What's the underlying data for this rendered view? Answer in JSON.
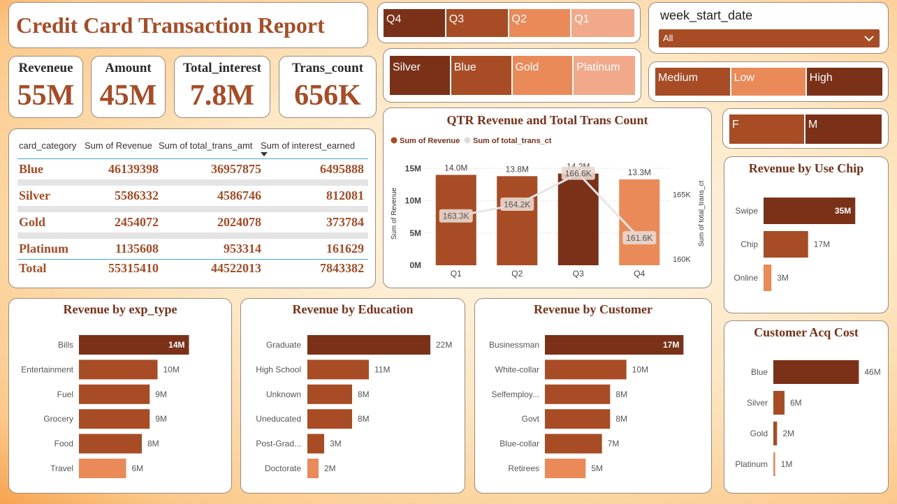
{
  "report_title": "Credit Card Transaction Report",
  "kpis": [
    {
      "label": "Reveneue",
      "value": "55M"
    },
    {
      "label": "Amount",
      "value": "45M"
    },
    {
      "label": "Total_interest",
      "value": "7.8M"
    },
    {
      "label": "Trans_count",
      "value": "656K"
    }
  ],
  "slicers": {
    "quarter": [
      "Q4",
      "Q3",
      "Q2",
      "Q1"
    ],
    "card_category": [
      "Silver",
      "Blue",
      "Gold",
      "Platinum"
    ],
    "income": [
      "Medium",
      "Low",
      "High"
    ],
    "gender": [
      "F",
      "M"
    ],
    "week_start_date": {
      "label": "week_start_date",
      "value": "All"
    }
  },
  "table": {
    "headers": [
      "card_category",
      "Sum of Revenue",
      "Sum of total_trans_amt",
      "Sum of interest_earned"
    ],
    "rows": [
      [
        "Blue",
        "46139398",
        "36957875",
        "6495888"
      ],
      [
        "Silver",
        "5586332",
        "4586746",
        "812081"
      ],
      [
        "Gold",
        "2454072",
        "2024078",
        "373784"
      ],
      [
        "Platinum",
        "1135608",
        "953314",
        "161629"
      ]
    ],
    "total": [
      "Total",
      "55315410",
      "44522013",
      "7843382"
    ]
  },
  "colors": {
    "dark": "#7a3118",
    "mid": "#a84c26",
    "light": "#ea8a59",
    "pale": "#f2a98a",
    "line": "#e6e6e6"
  },
  "icons": {
    "dropdown": "chevron-down-icon",
    "sort": "sort-desc-icon"
  },
  "chart_data": [
    {
      "type": "bar",
      "title": "QTR Revenue and Total Trans Count",
      "legend": [
        "Sum of Revenue",
        "Sum of total_trans_ct"
      ],
      "legend_position": "top-left",
      "categories": [
        "Q1",
        "Q2",
        "Q3",
        "Q4"
      ],
      "series": [
        {
          "name": "Sum of Revenue",
          "values": [
            14.0,
            13.8,
            14.2,
            13.3
          ],
          "labels": [
            "14.0M",
            "13.8M",
            "14.2M",
            "13.3M"
          ]
        },
        {
          "name": "Sum of total_trans_ct",
          "values": [
            163.3,
            164.2,
            166.6,
            161.6
          ],
          "labels": [
            "163.3K",
            "164.2K",
            "166.6K",
            "161.6K"
          ]
        }
      ],
      "ylabel": "Sum of Revenue",
      "y2label": "Sum of total_trans_ct",
      "y_ticks": [
        "0M",
        "5M",
        "10M",
        "15M"
      ],
      "y_ticks_values": [
        0,
        5,
        10,
        15
      ],
      "ylim": [
        0,
        16
      ],
      "y2_ticks": [
        "160K",
        "165K"
      ],
      "y2_ticks_values": [
        160,
        165
      ],
      "y2lim": [
        159.5,
        167.5
      ]
    },
    {
      "type": "bar",
      "title": "Revenue by Use Chip",
      "categories": [
        "Swipe",
        "Chip",
        "Online"
      ],
      "values": [
        35,
        17,
        3
      ],
      "labels": [
        "35M",
        "17M",
        "3M"
      ],
      "xlim": [
        0,
        40
      ]
    },
    {
      "type": "bar",
      "title": "Revenue by exp_type",
      "categories": [
        "Bills",
        "Entertainment",
        "Fuel",
        "Grocery",
        "Food",
        "Travel"
      ],
      "values": [
        14,
        10,
        9,
        9,
        8,
        6
      ],
      "labels": [
        "14M",
        "10M",
        "9M",
        "9M",
        "8M",
        "6M"
      ],
      "xlim": [
        0,
        16
      ]
    },
    {
      "type": "bar",
      "title": "Revenue by Education",
      "categories": [
        "Graduate",
        "High School",
        "Unknown",
        "Uneducated",
        "Post-Grad...",
        "Doctorate"
      ],
      "values": [
        22,
        11,
        8,
        8,
        3,
        2
      ],
      "labels": [
        "22M",
        "11M",
        "8M",
        "8M",
        "3M",
        "2M"
      ],
      "xlim": [
        0,
        24
      ]
    },
    {
      "type": "bar",
      "title": "Revenue by Customer",
      "categories": [
        "Businessman",
        "White-collar",
        "Selfemploy...",
        "Govt",
        "Blue-collar",
        "Retirees"
      ],
      "values": [
        17,
        10,
        8,
        8,
        7,
        5
      ],
      "labels": [
        "17M",
        "10M",
        "8M",
        "8M",
        "7M",
        "5M"
      ],
      "xlim": [
        0,
        18
      ]
    },
    {
      "type": "bar",
      "title": "Customer Acq Cost",
      "categories": [
        "Blue",
        "Silver",
        "Gold",
        "Platinum"
      ],
      "values": [
        46,
        6,
        2,
        1
      ],
      "labels": [
        "46M",
        "6M",
        "2M",
        "1M"
      ],
      "xlim": [
        0,
        50
      ]
    }
  ]
}
